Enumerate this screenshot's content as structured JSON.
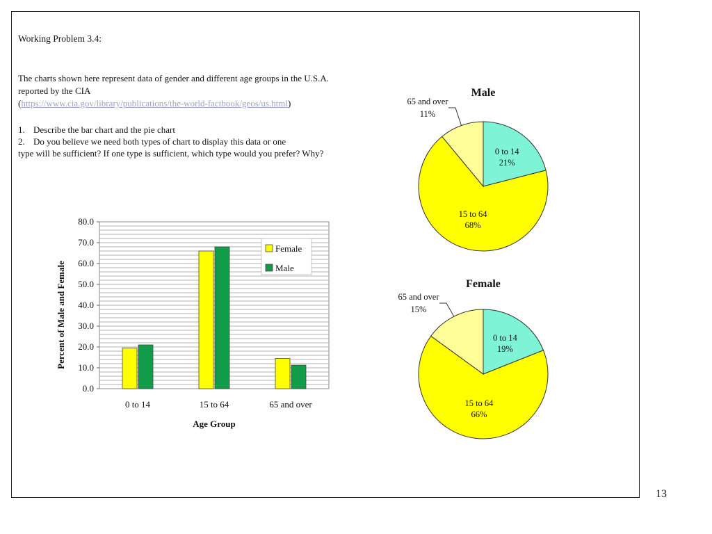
{
  "page": {
    "number": "13",
    "title": "Working Problem 3.4:",
    "description_lines": [
      "The charts shown here represent data of gender and different age groups in the U.S.A.",
      "reported by the CIA"
    ],
    "source_open": "(",
    "source_url": "https://www.cia.gov/library/publications/the-world-factbook/geos/us.html",
    "source_close": ")",
    "questions": [
      {
        "num": "1.",
        "text": "Describe the bar chart and the pie chart"
      },
      {
        "num": "2.",
        "text": "Do you believe  we need both types of chart to display this data or one"
      }
    ],
    "question_continuation": "type will be sufficient? If one type is sufficient, which type would you prefer? Why?"
  },
  "chart_data": [
    {
      "type": "bar",
      "categories": [
        "0 to 14",
        "15 to 64",
        "65 and over"
      ],
      "series": [
        {
          "name": "Female",
          "values": [
            19.5,
            66.0,
            14.5
          ],
          "color": "#ffff00"
        },
        {
          "name": "Male",
          "values": [
            21.0,
            68.0,
            11.3
          ],
          "color": "#129b48"
        }
      ],
      "xlabel": "Age Group",
      "ylabel": "Percent of Male and Female",
      "ylim": [
        0,
        80
      ],
      "yticks": [
        "0.0",
        "10.0",
        "20.0",
        "30.0",
        "40.0",
        "50.0",
        "60.0",
        "70.0",
        "80.0"
      ],
      "grid": true,
      "legend": "top-right"
    },
    {
      "type": "pie",
      "title": "Male",
      "slices": [
        {
          "label": "0 to 14",
          "value": 21,
          "pct_label": "21%",
          "color": "#7ff3d6"
        },
        {
          "label": "15 to 64",
          "value": 68,
          "pct_label": "68%",
          "color": "#ffff00"
        },
        {
          "label": "65 and over",
          "value": 11,
          "pct_label": "11%",
          "color": "#ffff99"
        }
      ]
    },
    {
      "type": "pie",
      "title": "Female",
      "slices": [
        {
          "label": "0 to 14",
          "value": 19,
          "pct_label": "19%",
          "color": "#7ff3d6"
        },
        {
          "label": "15 to 64",
          "value": 66,
          "pct_label": "66%",
          "color": "#ffff00"
        },
        {
          "label": "65 and over",
          "value": 15,
          "pct_label": "15%",
          "color": "#ffff99"
        }
      ]
    }
  ]
}
